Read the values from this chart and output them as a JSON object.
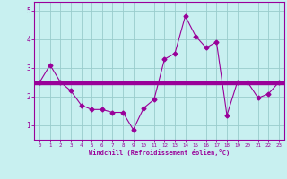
{
  "xlabel": "Windchill (Refroidissement éolien,°C)",
  "background_color": "#c8f0f0",
  "line_color": "#990099",
  "grid_color": "#99cccc",
  "hours": [
    0,
    1,
    2,
    3,
    4,
    5,
    6,
    7,
    8,
    9,
    10,
    11,
    12,
    13,
    14,
    15,
    16,
    17,
    18,
    19,
    20,
    21,
    22,
    23
  ],
  "windchill": [
    2.5,
    3.1,
    2.5,
    2.2,
    1.7,
    1.55,
    1.55,
    1.45,
    1.45,
    0.85,
    1.6,
    1.9,
    3.3,
    3.5,
    4.8,
    4.1,
    3.7,
    3.9,
    1.35,
    2.5,
    2.5,
    1.95,
    2.1,
    2.5
  ],
  "mean_values": [
    2.42,
    2.46,
    2.5,
    2.54
  ],
  "ylim": [
    0.5,
    5.3
  ],
  "yticks": [
    1,
    2,
    3,
    4,
    5
  ],
  "xlim": [
    -0.5,
    23.5
  ]
}
